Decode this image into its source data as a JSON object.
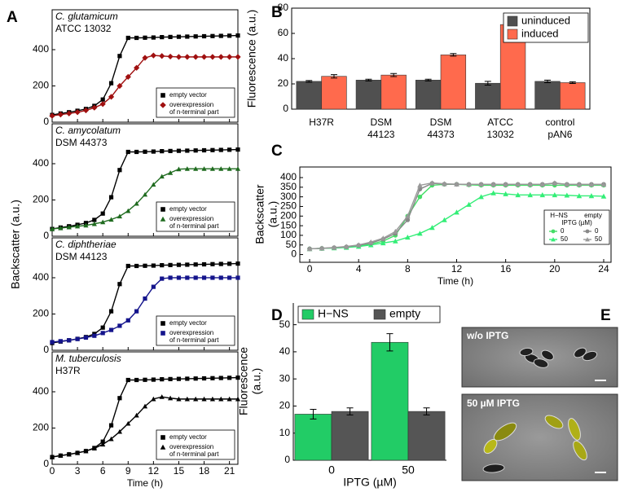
{
  "panel_labels": [
    "A",
    "B",
    "C",
    "D",
    "E"
  ],
  "chart_data": [
    {
      "type": "line",
      "title": [
        "C. glutamicum",
        "ATCC 13032"
      ],
      "ylabel": "Backscatter (a.u.)",
      "x": [
        0,
        1,
        2,
        3,
        4,
        5,
        6,
        7,
        8,
        9,
        10,
        11,
        12,
        13,
        14,
        15,
        16,
        17,
        18,
        19,
        20,
        21,
        22
      ],
      "xlim": [
        0,
        22
      ],
      "xticks": [
        0,
        3,
        6,
        9,
        12,
        15,
        18,
        21
      ],
      "xtick_labels": false,
      "ylim": [
        0,
        620
      ],
      "yticks": [
        0,
        200,
        400
      ],
      "series": [
        {
          "name": [
            "empty vector"
          ],
          "color": "#000000",
          "marker": "square",
          "values": [
            40,
            48,
            55,
            63,
            73,
            90,
            125,
            215,
            365,
            465,
            465,
            466,
            467,
            469,
            470,
            471,
            472,
            473,
            474,
            475,
            476,
            477,
            478
          ]
        },
        {
          "name": [
            "overexpression",
            "of n-terminal part"
          ],
          "color": "#a01010",
          "marker": "diamond",
          "values": [
            35,
            42,
            48,
            55,
            65,
            80,
            100,
            140,
            200,
            250,
            300,
            355,
            368,
            365,
            362,
            360,
            360,
            360,
            360,
            360,
            360,
            360,
            360
          ]
        }
      ]
    },
    {
      "type": "line",
      "title": [
        "C. amycolatum",
        "DSM 44373"
      ],
      "x": [
        0,
        1,
        2,
        3,
        4,
        5,
        6,
        7,
        8,
        9,
        10,
        11,
        12,
        13,
        14,
        15,
        16,
        17,
        18,
        19,
        20,
        21,
        22
      ],
      "xlim": [
        0,
        22
      ],
      "xticks": [
        0,
        3,
        6,
        9,
        12,
        15,
        18,
        21
      ],
      "xtick_labels": false,
      "ylim": [
        0,
        620
      ],
      "yticks": [
        0,
        200,
        400
      ],
      "series": [
        {
          "name": [
            "empty vector"
          ],
          "color": "#000000",
          "marker": "square",
          "values": [
            40,
            48,
            55,
            63,
            73,
            90,
            125,
            215,
            365,
            465,
            465,
            466,
            467,
            469,
            470,
            471,
            472,
            473,
            474,
            475,
            476,
            477,
            478
          ]
        },
        {
          "name": [
            "overexpression",
            "of n-terminal part"
          ],
          "color": "#1f6b1f",
          "marker": "triangle",
          "values": [
            40,
            45,
            50,
            55,
            60,
            68,
            78,
            92,
            110,
            140,
            180,
            230,
            285,
            330,
            350,
            370,
            372,
            372,
            372,
            372,
            372,
            372,
            372
          ]
        }
      ]
    },
    {
      "type": "line",
      "title": [
        "C. diphtheriae",
        "DSM 44123"
      ],
      "x": [
        0,
        1,
        2,
        3,
        4,
        5,
        6,
        7,
        8,
        9,
        10,
        11,
        12,
        13,
        14,
        15,
        16,
        17,
        18,
        19,
        20,
        21,
        22
      ],
      "xlim": [
        0,
        22
      ],
      "xticks": [
        0,
        3,
        6,
        9,
        12,
        15,
        18,
        21
      ],
      "xtick_labels": false,
      "ylim": [
        0,
        620
      ],
      "yticks": [
        0,
        200,
        400
      ],
      "series": [
        {
          "name": [
            "empty vector"
          ],
          "color": "#000000",
          "marker": "square",
          "values": [
            40,
            48,
            55,
            63,
            73,
            90,
            125,
            215,
            365,
            465,
            465,
            466,
            467,
            469,
            470,
            471,
            472,
            473,
            474,
            475,
            476,
            477,
            478
          ]
        },
        {
          "name": [
            "overexpression",
            "of n-terminal part"
          ],
          "color": "#14148c",
          "marker": "square",
          "values": [
            45,
            50,
            55,
            62,
            70,
            80,
            95,
            112,
            135,
            165,
            215,
            285,
            350,
            395,
            400,
            400,
            400,
            400,
            400,
            400,
            400,
            400,
            400
          ]
        }
      ]
    },
    {
      "type": "line",
      "title": [
        "M. tuberculosis",
        "H37R"
      ],
      "xlabel": "Time (h)",
      "x": [
        0,
        1,
        2,
        3,
        4,
        5,
        6,
        7,
        8,
        9,
        10,
        11,
        12,
        13,
        14,
        15,
        16,
        17,
        18,
        19,
        20,
        21,
        22
      ],
      "xlim": [
        0,
        22
      ],
      "xticks": [
        0,
        3,
        6,
        9,
        12,
        15,
        18,
        21
      ],
      "ylim": [
        0,
        620
      ],
      "yticks": [
        0,
        200,
        400
      ],
      "series": [
        {
          "name": [
            "empty vector"
          ],
          "color": "#000000",
          "marker": "square",
          "values": [
            40,
            48,
            55,
            63,
            73,
            90,
            125,
            215,
            365,
            465,
            465,
            466,
            467,
            469,
            470,
            471,
            472,
            473,
            474,
            475,
            476,
            477,
            478
          ]
        },
        {
          "name": [
            "overexpression",
            "of n-terminal part"
          ],
          "color": "#000000",
          "marker": "triangle",
          "values": [
            40,
            48,
            55,
            63,
            73,
            88,
            110,
            140,
            180,
            225,
            270,
            320,
            360,
            372,
            365,
            360,
            360,
            360,
            360,
            360,
            360,
            360,
            360
          ]
        }
      ]
    },
    {
      "type": "bar",
      "ylabel": "Fluorescence (a.u.)",
      "legend": "upper right",
      "box": true,
      "categories": [
        [
          "H37R"
        ],
        [
          "DSM",
          "44123"
        ],
        [
          "DSM",
          "44373"
        ],
        [
          "ATCC",
          "13032"
        ],
        [
          "control",
          "pAN6"
        ]
      ],
      "ylim": [
        0,
        80
      ],
      "yticks": [
        0,
        20,
        40,
        60,
        80
      ],
      "series": [
        {
          "name": "uninduced",
          "color": "#505050",
          "values": [
            22,
            23,
            23,
            20.5,
            22
          ],
          "errors": [
            0.7,
            0.7,
            0.7,
            1.5,
            1
          ]
        },
        {
          "name": "induced",
          "color": "#ff6a4d",
          "values": [
            26,
            27,
            43,
            67,
            21
          ],
          "errors": [
            1.3,
            1.2,
            1,
            2.5,
            0.7
          ]
        }
      ]
    },
    {
      "type": "line",
      "ylabel": [
        "Backscatter",
        "(a.u.)"
      ],
      "xlabel": "Time (h)",
      "legend_headers": [
        "H−NS",
        "empty"
      ],
      "legend_title": "IPTG (µM)",
      "x": [
        0,
        1,
        2,
        3,
        4,
        5,
        6,
        7,
        8,
        9,
        10,
        11,
        12,
        13,
        14,
        15,
        16,
        17,
        18,
        19,
        20,
        21,
        22,
        23,
        24
      ],
      "xlim": [
        -0.8,
        24.6
      ],
      "xticks": [
        0,
        4,
        8,
        12,
        16,
        20,
        24
      ],
      "ylim": [
        -40,
        455
      ],
      "yticks": [
        0,
        50,
        100,
        150,
        200,
        250,
        300,
        350,
        400
      ],
      "series": [
        {
          "name": "0",
          "color": "#44dd66",
          "marker": "circle",
          "values": [
            30,
            32,
            35,
            38,
            44,
            55,
            70,
            100,
            200,
            300,
            360,
            365,
            365,
            362,
            360,
            360,
            360,
            360,
            360,
            360,
            360,
            360,
            360,
            360,
            360
          ]
        },
        {
          "name": "50",
          "color": "#33ee77",
          "marker": "triangle",
          "values": [
            30,
            32,
            34,
            37,
            42,
            50,
            60,
            70,
            90,
            110,
            140,
            180,
            220,
            260,
            300,
            320,
            315,
            310,
            310,
            310,
            310,
            308,
            305,
            305,
            303
          ]
        },
        {
          "name": "0",
          "color": "#888888",
          "marker": "circle",
          "values": [
            30,
            32,
            36,
            40,
            48,
            60,
            80,
            110,
            180,
            340,
            370,
            366,
            365,
            365,
            365,
            365,
            365,
            365,
            365,
            365,
            370,
            365,
            365,
            365,
            365
          ]
        },
        {
          "name": "50",
          "color": "#999999",
          "marker": "triangle",
          "values": [
            30,
            33,
            37,
            42,
            50,
            65,
            85,
            120,
            200,
            360,
            372,
            368,
            366,
            365,
            365,
            365,
            365,
            365,
            365,
            365,
            372,
            365,
            364,
            364,
            364
          ]
        }
      ]
    },
    {
      "type": "bar",
      "ylabel": [
        "Fluorescence",
        "(a.u.)"
      ],
      "xlabel": "IPTG (µM)",
      "legend": "top",
      "box": false,
      "categories": [
        [
          "0"
        ],
        [
          "50"
        ]
      ],
      "ylim": [
        0,
        58
      ],
      "yticks": [
        0,
        10,
        20,
        30,
        40,
        50
      ],
      "series": [
        {
          "name": "H−NS",
          "color": "#22cc66",
          "values": [
            17,
            43.5
          ],
          "errors": [
            1.8,
            3.2
          ]
        },
        {
          "name": "empty",
          "color": "#555555",
          "values": [
            18,
            18
          ],
          "errors": [
            1.3,
            1.3
          ]
        }
      ]
    }
  ],
  "micrographs": [
    {
      "label": "w/o IPTG"
    },
    {
      "label": "50 µM IPTG"
    }
  ]
}
